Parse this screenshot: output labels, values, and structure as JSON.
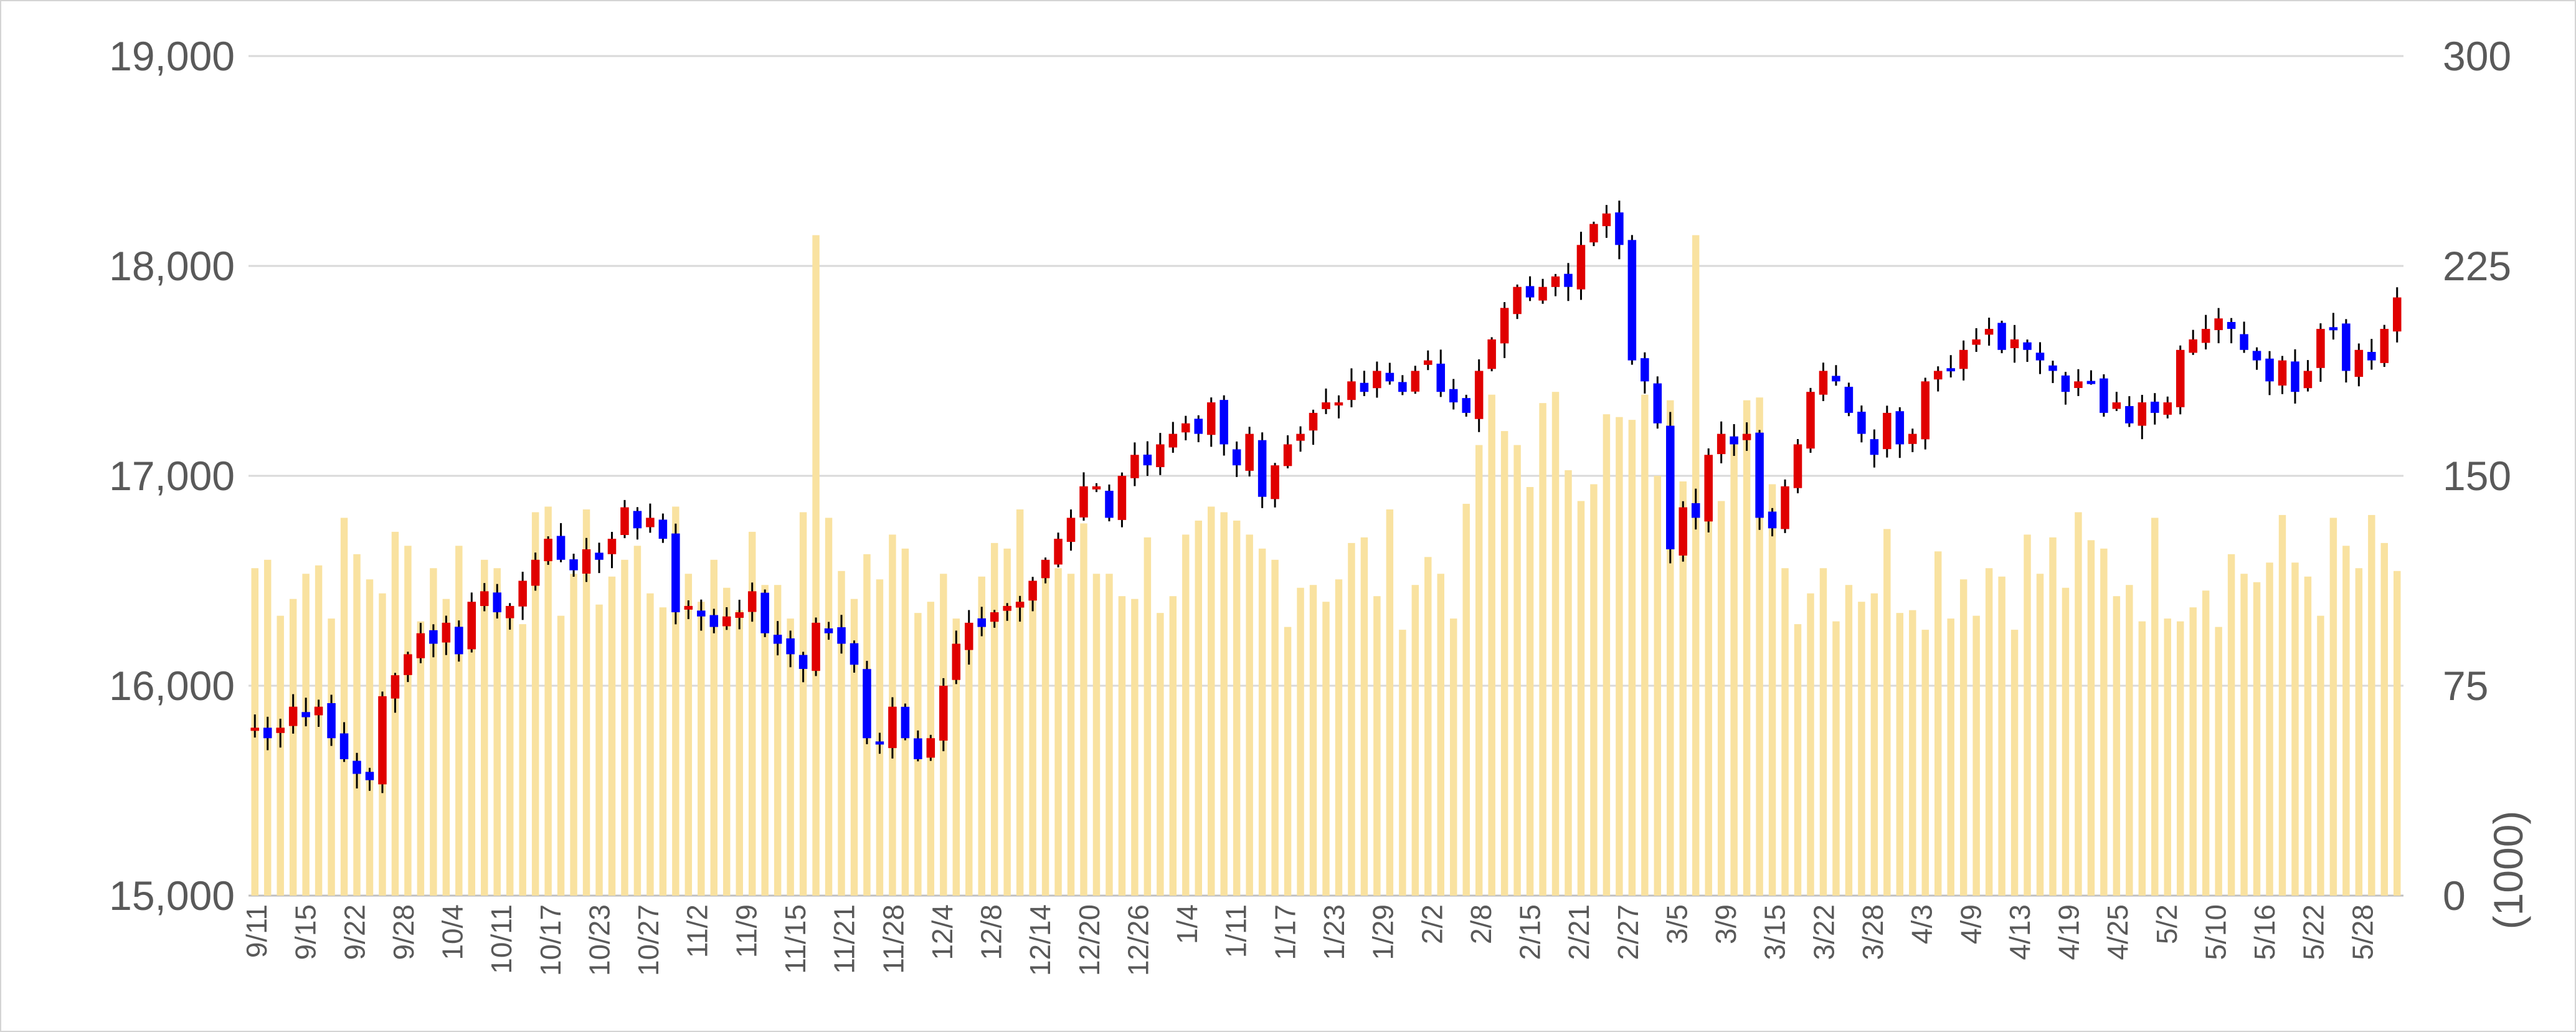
{
  "chart_data": {
    "type": "candlestick",
    "title": "",
    "y_left": {
      "ticks": [
        "15,000",
        "16,000",
        "17,000",
        "18,000",
        "19,000"
      ],
      "ylim": [
        15000,
        19000
      ]
    },
    "y_right": {
      "label": "(1000)",
      "ticks": [
        "0",
        "75",
        "150",
        "225",
        "300"
      ],
      "ylim": [
        0,
        300
      ]
    },
    "x_tick_labels": [
      "9/11",
      "9/15",
      "9/22",
      "9/28",
      "10/4",
      "10/11",
      "10/17",
      "10/23",
      "10/27",
      "11/2",
      "11/9",
      "11/15",
      "11/21",
      "11/28",
      "12/4",
      "12/8",
      "12/14",
      "12/20",
      "12/26",
      "1/4",
      "1/11",
      "1/17",
      "1/23",
      "1/29",
      "2/2",
      "2/8",
      "2/15",
      "2/21",
      "2/27",
      "3/5",
      "3/9",
      "3/15",
      "3/22",
      "3/28",
      "4/3",
      "4/9",
      "4/13",
      "4/19",
      "4/25",
      "5/2",
      "5/10",
      "5/16",
      "5/22",
      "5/28"
    ],
    "colors": {
      "up": "#e00000",
      "down": "#0000ff",
      "wick": "#000000",
      "volume": "#f9e2a0",
      "grid": "#d9d9d9"
    },
    "close": [
      15800,
      15750,
      15800,
      15900,
      15850,
      15900,
      15750,
      15650,
      15580,
      15550,
      15950,
      16050,
      16150,
      16250,
      16200,
      16300,
      16150,
      16400,
      16450,
      16350,
      16380,
      16500,
      16600,
      16700,
      16600,
      16550,
      16650,
      16600,
      16700,
      16850,
      16750,
      16800,
      16700,
      16350,
      16380,
      16330,
      16280,
      16330,
      16350,
      16450,
      16250,
      16200,
      16150,
      16080,
      16300,
      16250,
      16200,
      16100,
      15750,
      15720,
      15900,
      15750,
      15650,
      15750,
      16000,
      16200,
      16300,
      16280,
      16350,
      16380,
      16400,
      16500,
      16600,
      16700,
      16800,
      16950,
      16950,
      16800,
      17000,
      17100,
      17050,
      17150,
      17200,
      17250,
      17200,
      17350,
      17150,
      17050,
      17200,
      16900,
      17050,
      17150,
      17200,
      17300,
      17350,
      17350,
      17450,
      17400,
      17500,
      17450,
      17400,
      17500,
      17550,
      17400,
      17350,
      17300,
      17500,
      17650,
      17800,
      17900,
      17850,
      17900,
      17950,
      17900,
      18100,
      18200,
      18250,
      18100,
      17550,
      17450,
      17250,
      16650,
      16850,
      16800,
      17100,
      17200,
      17150,
      17200,
      16800,
      16750,
      16950,
      17150,
      17400,
      17500,
      17450,
      17300,
      17200,
      17100,
      17300,
      17150,
      17200,
      17450,
      17500,
      17500,
      17600,
      17650,
      17700,
      17600,
      17650,
      17600,
      17550,
      17500,
      17400,
      17450,
      17450,
      17300,
      17350,
      17250,
      17350,
      17300,
      17350,
      17600,
      17650,
      17700,
      17750,
      17700,
      17600,
      17550,
      17450,
      17550,
      17400,
      17500,
      17700,
      17700,
      17500,
      17600,
      17550,
      17700,
      17850
    ]
  },
  "axis": {
    "y_unit": "(1000)"
  }
}
